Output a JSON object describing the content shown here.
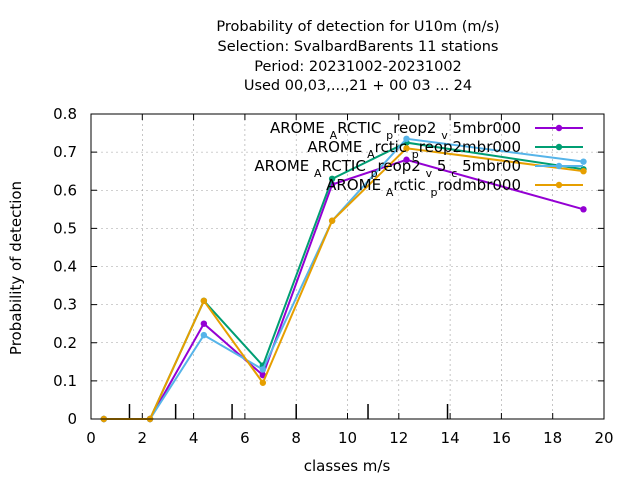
{
  "chart_data": {
    "type": "line",
    "title_lines": [
      "Probability of detection  for U10m (m/s)",
      "Selection: SvalbardBarents     11 stations",
      "Period: 20231002-20231002",
      "Used  00,03,...,21  + 00 03 ... 24"
    ],
    "xlabel": "classes m/s",
    "ylabel": "Probability of detection",
    "xlim": [
      0,
      20
    ],
    "ylim": [
      0,
      0.8
    ],
    "x_ticks": [
      "0",
      "2",
      "4",
      "6",
      "8",
      "10",
      "12",
      "14",
      "16",
      "18",
      "20"
    ],
    "y_ticks": [
      "0",
      "0.1",
      "0.2",
      "0.3",
      "0.4",
      "0.5",
      "0.6",
      "0.7",
      "0.8"
    ],
    "grid": true,
    "legend_position": "top-right",
    "class_markers_x": [
      1.5,
      3.3,
      5.5,
      8.0,
      10.8,
      13.9
    ],
    "series": [
      {
        "name": "AROME_ARCTIC_preop2_v_5mbr000",
        "legend_parts": [
          [
            "AROME ",
            ""
          ],
          [
            "A",
            "sub"
          ],
          [
            "RCTIC ",
            ""
          ],
          [
            "p",
            "sub"
          ],
          [
            "reop2 ",
            ""
          ],
          [
            "v",
            "sub"
          ],
          [
            " 5mbr000",
            ""
          ]
        ],
        "color": "#9400d3",
        "x": [
          0.5,
          2.3,
          4.4,
          6.7,
          9.4,
          12.3,
          19.2
        ],
        "y": [
          0.0,
          0.0,
          0.25,
          0.115,
          0.615,
          0.68,
          0.55
        ]
      },
      {
        "name": "AROME_Arctic_preop2mbr000",
        "legend_parts": [
          [
            "AROME ",
            ""
          ],
          [
            "A",
            "sub"
          ],
          [
            "rctic ",
            ""
          ],
          [
            "p",
            "sub"
          ],
          [
            "reop2mbr000",
            ""
          ]
        ],
        "color": "#009e73",
        "x": [
          0.5,
          2.3,
          4.4,
          6.7,
          9.4,
          12.3,
          19.2
        ],
        "y": [
          0.0,
          0.0,
          0.31,
          0.14,
          0.63,
          0.725,
          0.655
        ]
      },
      {
        "name": "AROME_ARCTIC_preop2_v_5_c_5mbr00",
        "legend_parts": [
          [
            "AROME ",
            ""
          ],
          [
            "A",
            "sub"
          ],
          [
            "RCTIC ",
            ""
          ],
          [
            "p",
            "sub"
          ],
          [
            "reop2 ",
            ""
          ],
          [
            "v",
            "sub"
          ],
          [
            " 5 ",
            ""
          ],
          [
            "c",
            "sub"
          ],
          [
            " 5mbr00",
            ""
          ]
        ],
        "color": "#56b4e9",
        "x": [
          0.5,
          2.3,
          4.4,
          6.7,
          9.4,
          12.3,
          19.2
        ],
        "y": [
          0.0,
          0.0,
          0.22,
          0.13,
          0.52,
          0.735,
          0.675
        ]
      },
      {
        "name": "AROME_Arctic_prodmbr000",
        "legend_parts": [
          [
            "AROME ",
            ""
          ],
          [
            "A",
            "sub"
          ],
          [
            "rctic ",
            ""
          ],
          [
            "p",
            "sub"
          ],
          [
            "rodmbr000",
            ""
          ]
        ],
        "color": "#e69f00",
        "x": [
          0.5,
          2.3,
          4.4,
          6.7,
          9.4,
          12.3,
          19.2
        ],
        "y": [
          0.0,
          0.0,
          0.31,
          0.095,
          0.52,
          0.71,
          0.65
        ]
      }
    ]
  }
}
